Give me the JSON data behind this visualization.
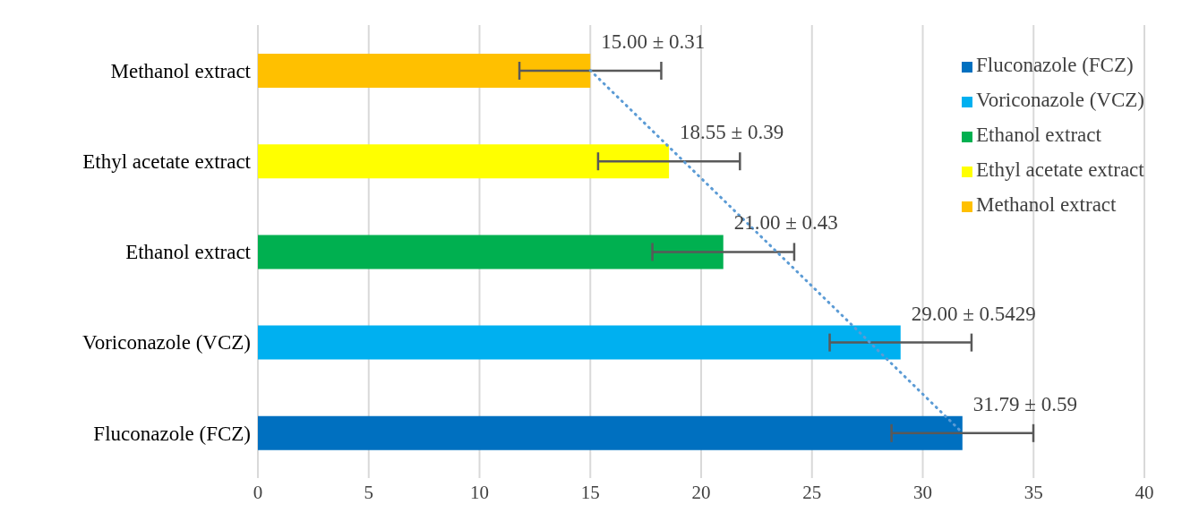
{
  "chart_data": {
    "type": "bar",
    "orientation": "horizontal",
    "stacked": true,
    "categories": [
      "Methanol extract",
      "Ethyl acetate extract",
      "Ethanol extract",
      "Voriconazole (VCZ)",
      "Fluconazole (FCZ)"
    ],
    "series": [
      {
        "name": "Fluconazole (FCZ)",
        "color": "#0070c0",
        "values": [
          null,
          null,
          null,
          null,
          31.79
        ],
        "errors": [
          null,
          null,
          null,
          null,
          3.2
        ],
        "value_labels": [
          null,
          null,
          null,
          null,
          "31.79 ± 0.59"
        ]
      },
      {
        "name": "Voriconazole (VCZ)",
        "color": "#00b0f0",
        "values": [
          null,
          null,
          null,
          29,
          null
        ],
        "errors": [
          null,
          null,
          null,
          3.2,
          null
        ],
        "value_labels": [
          null,
          null,
          null,
          "29.00 ± 0.5429",
          null
        ]
      },
      {
        "name": "Ethanol extract",
        "color": "#00b050",
        "values": [
          null,
          null,
          21,
          null,
          null
        ],
        "errors": [
          null,
          null,
          3.2,
          null,
          null
        ],
        "value_labels": [
          null,
          null,
          "21.00 ± 0.43",
          null,
          null
        ]
      },
      {
        "name": "Ethyl acetate extract",
        "color": "#ffff00",
        "values": [
          null,
          18.55,
          null,
          null,
          null
        ],
        "errors": [
          null,
          3.2,
          null,
          null,
          null
        ],
        "value_labels": [
          null,
          "18.55 ± 0.39",
          null,
          null,
          null
        ]
      },
      {
        "name": "Methanol extract",
        "color": "#ffc000",
        "values": [
          15,
          null,
          null,
          null,
          null
        ],
        "errors": [
          3.2,
          null,
          null,
          null,
          null
        ],
        "value_labels": [
          "15.00 ± 0.31",
          null,
          null,
          null,
          null
        ]
      },
      {
        "type": "line",
        "color": "#5b9bd5",
        "line_style": "dotted",
        "values": [
          15,
          19.2,
          23.4,
          27.6,
          31.79
        ]
      }
    ],
    "xlim": [
      0,
      40
    ],
    "xticks": [
      0,
      5,
      10,
      15,
      20,
      25,
      30,
      35,
      40
    ],
    "grid": "x",
    "legend": "right"
  }
}
